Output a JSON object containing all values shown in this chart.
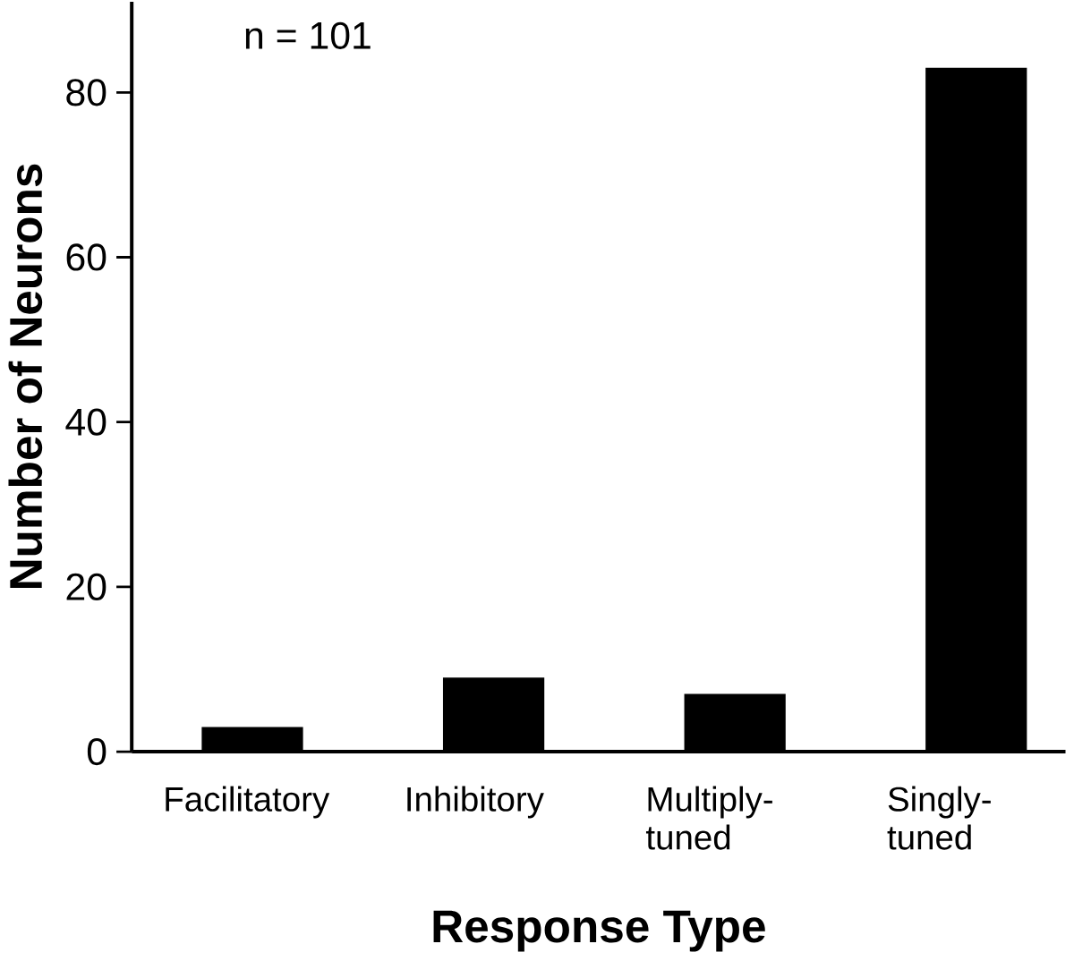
{
  "chart_data": {
    "type": "bar",
    "xlabel": "Response Type",
    "ylabel": "Number of Neurons",
    "categories": [
      "Facilitatory",
      "Inhibitory",
      "Multiply-tuned",
      "Singly-tuned"
    ],
    "values": [
      3,
      9,
      7,
      83
    ],
    "color": "#000000",
    "ylim": [
      0,
      91
    ],
    "yticks": [
      0,
      20,
      40,
      60,
      80
    ],
    "annotations": [
      "n = 101"
    ]
  }
}
